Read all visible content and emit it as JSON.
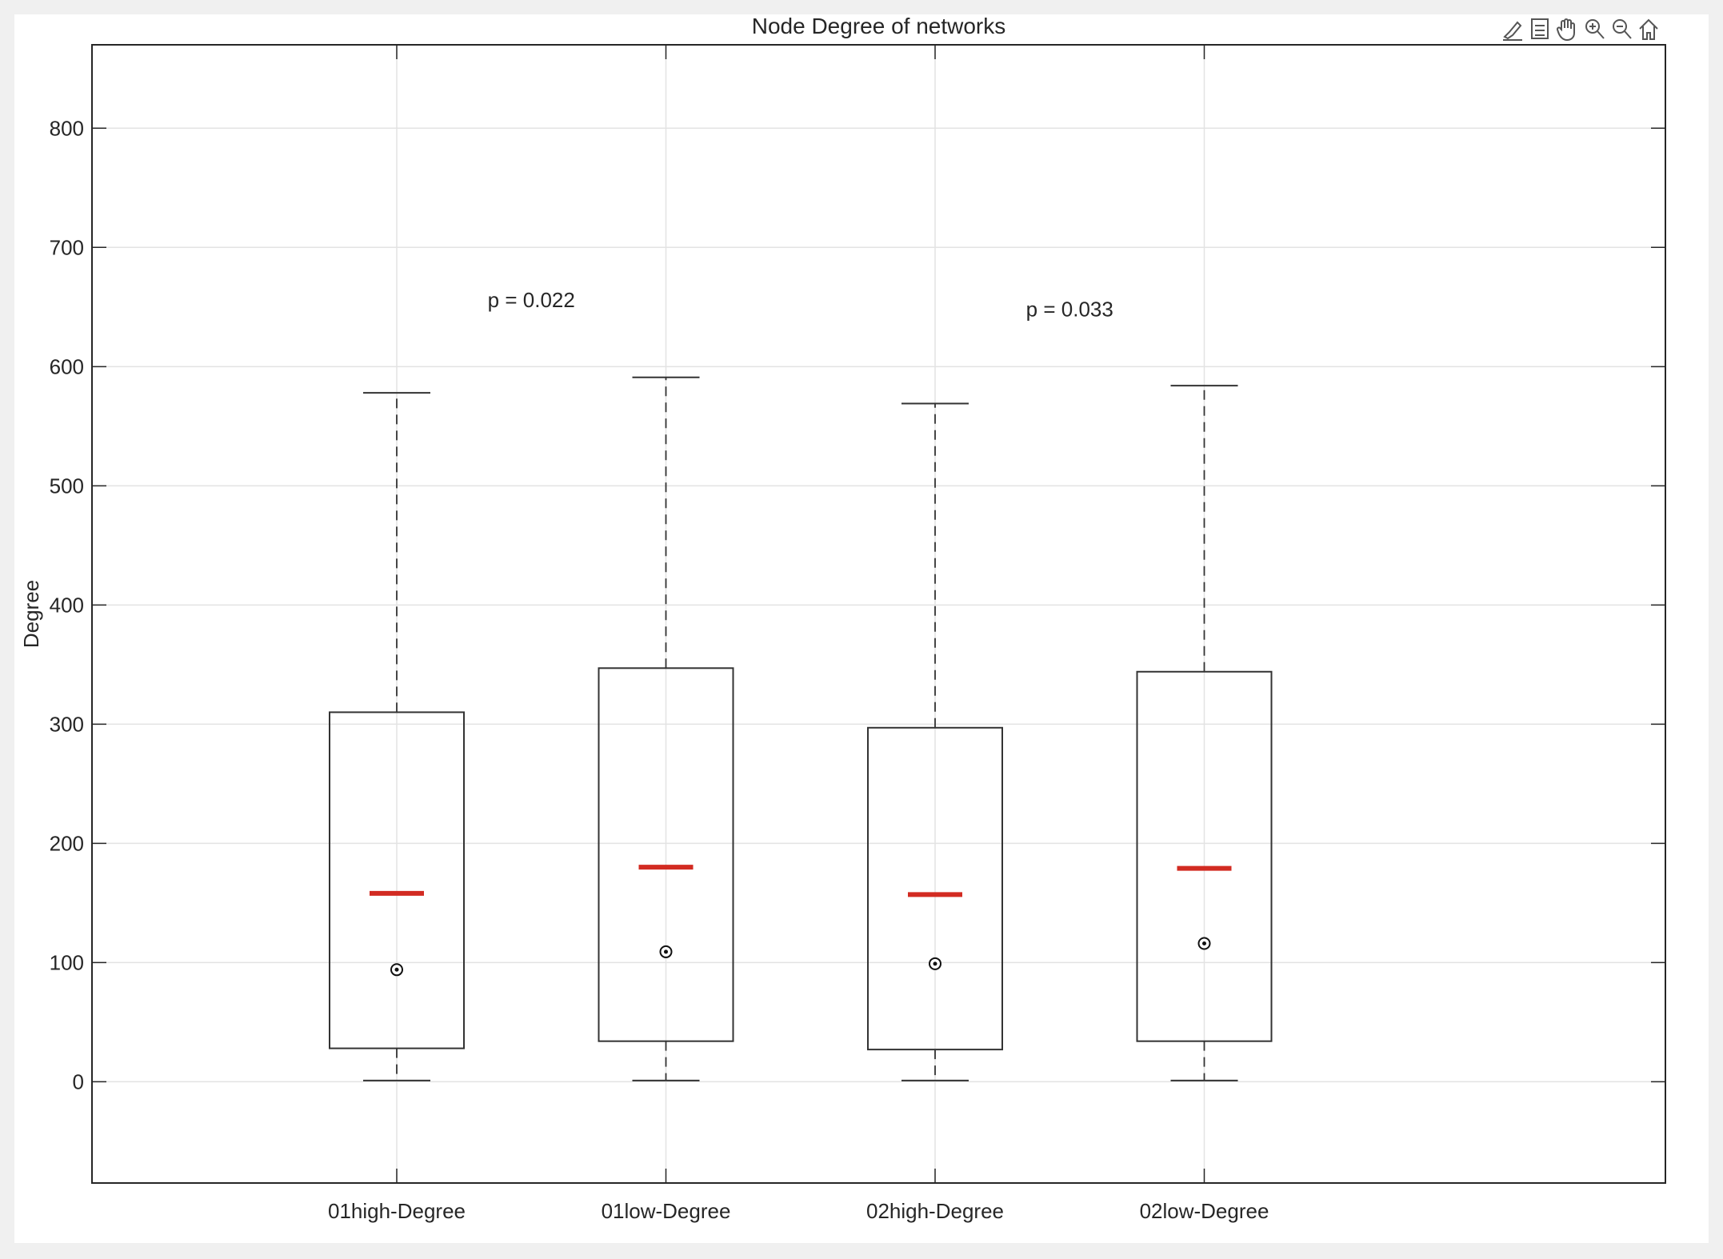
{
  "window": {
    "toolbar": [
      {
        "name": "edit-plot-icon"
      },
      {
        "name": "legend-icon"
      },
      {
        "name": "pan-hand-icon"
      },
      {
        "name": "zoom-in-icon"
      },
      {
        "name": "zoom-out-icon"
      },
      {
        "name": "home-icon"
      }
    ]
  },
  "chart_data": {
    "type": "box",
    "title": "Node Degree of networks",
    "xlabel": "",
    "ylabel": "Degree",
    "ylim": [
      -85,
      870
    ],
    "yticks": [
      0,
      100,
      200,
      300,
      400,
      500,
      600,
      700,
      800
    ],
    "ytick_labels": [
      "0",
      "100",
      "200",
      "300",
      "400",
      "500",
      "600",
      "700",
      "800"
    ],
    "grid": true,
    "categories": [
      "01high-Degree",
      "01low-Degree",
      "02high-Degree",
      "02low-Degree"
    ],
    "boxes": [
      {
        "category": "01high-Degree",
        "whisker_low": 1,
        "q1": 28,
        "median": 158,
        "q3": 310,
        "whisker_high": 578,
        "mean": 94
      },
      {
        "category": "01low-Degree",
        "whisker_low": 1,
        "q1": 34,
        "median": 180,
        "q3": 347,
        "whisker_high": 591,
        "mean": 109
      },
      {
        "category": "02high-Degree",
        "whisker_low": 1,
        "q1": 27,
        "median": 157,
        "q3": 297,
        "whisker_high": 569,
        "mean": 99
      },
      {
        "category": "02low-Degree",
        "whisker_low": 1,
        "q1": 34,
        "median": 179,
        "q3": 344,
        "whisker_high": 584,
        "mean": 116
      }
    ],
    "annotations": [
      {
        "text": "p = 0.022",
        "between": [
          "01high-Degree",
          "01low-Degree"
        ],
        "y": 650
      },
      {
        "text": "p = 0.033",
        "between": [
          "02high-Degree",
          "02low-Degree"
        ],
        "y": 642
      }
    ],
    "colors": {
      "median": "#d22b22",
      "box": "#333333",
      "grid": "#e3e3e3",
      "axes": "#262626"
    }
  }
}
